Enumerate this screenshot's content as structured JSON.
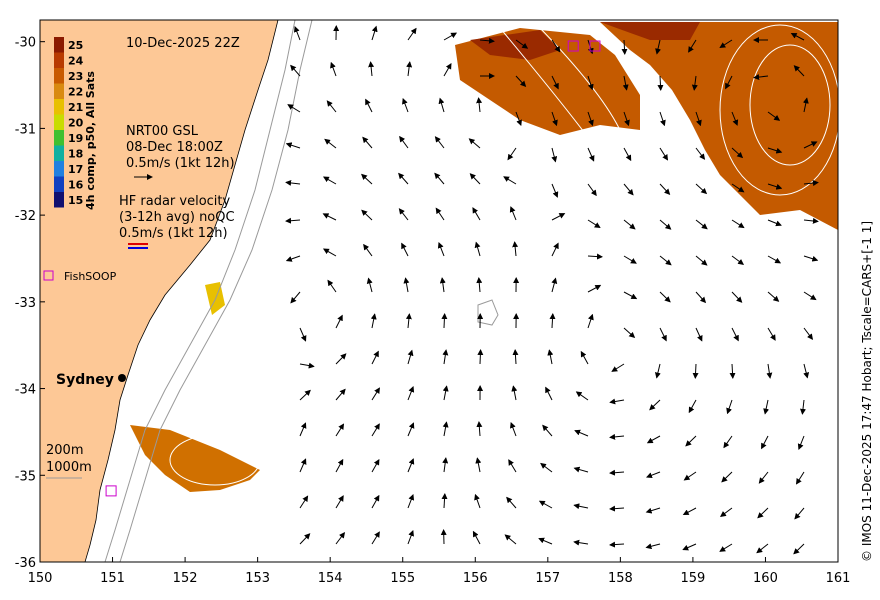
{
  "title": "10-Dec-2025 22Z",
  "colorbar": {
    "label": "4h comp, p50, All Sats",
    "ticks": [
      "25",
      "24",
      "23",
      "22",
      "21",
      "20",
      "19",
      "18",
      "17",
      "16",
      "15"
    ],
    "colors": [
      "#8b1a00",
      "#b83a00",
      "#c85a00",
      "#d98a10",
      "#e8c000",
      "#c8dc00",
      "#40c030",
      "#10b0a0",
      "#2080e0",
      "#1040c0",
      "#101070"
    ]
  },
  "gsl_legend": {
    "line1": "NRT00 GSL",
    "line2": "08-Dec 18:00Z",
    "line3": "0.5m/s (1kt 12h)"
  },
  "hf_legend": {
    "line1": "HF radar velocity",
    "line2": "(3-12h avg) noQC",
    "line3": "0.5m/s (1kt 12h)"
  },
  "fishsoop_label": "FishSOOP",
  "city": "Sydney",
  "isobaths": [
    "200m",
    "1000m"
  ],
  "credit": "© IMOS 11-Dec-2025 17:47 Hobart; Tscale=CARS+[-1 1]",
  "axes": {
    "x_ticks": [
      "150",
      "151",
      "152",
      "153",
      "154",
      "155",
      "156",
      "157",
      "158",
      "159",
      "160",
      "161"
    ],
    "y_ticks": [
      "-30",
      "-31",
      "-32",
      "-33",
      "-34",
      "-35",
      "-36"
    ],
    "xlim": [
      150,
      161
    ],
    "ylim": [
      -36,
      -29.75
    ]
  },
  "colors": {
    "land": "#fdc896",
    "sst_warm": "#c45a00",
    "sst_hot": "#9a2a00",
    "fishsoop": "#cc00cc"
  },
  "fishsoop_sites": [
    [
      157.35,
      -30.05
    ],
    [
      157.65,
      -30.05
    ],
    [
      150.98,
      -35.18
    ]
  ]
}
